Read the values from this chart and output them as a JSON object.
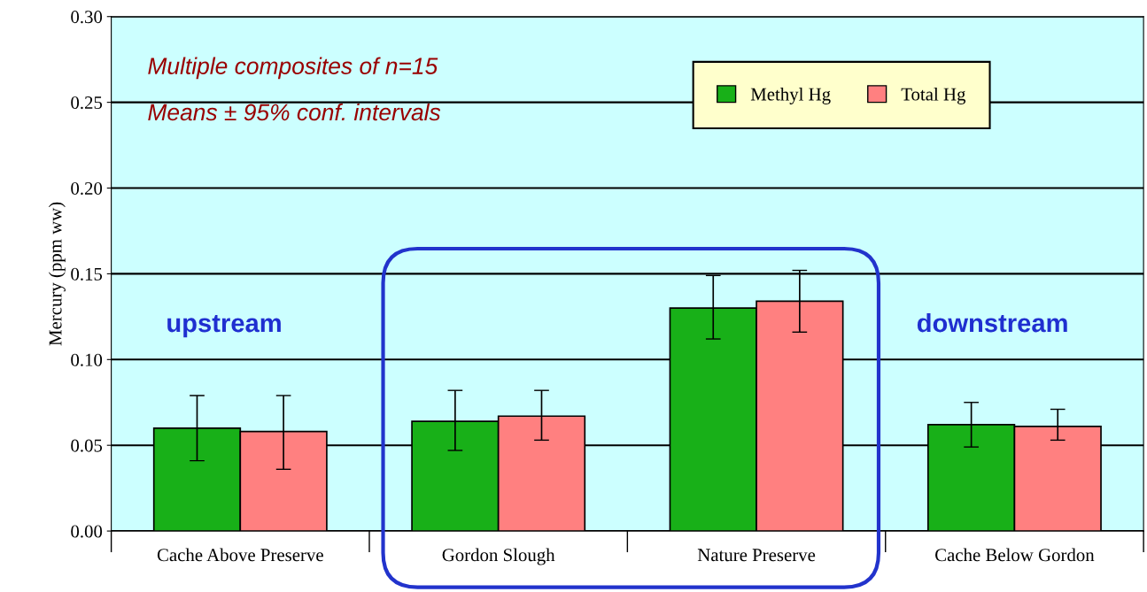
{
  "chart_data": {
    "type": "bar",
    "ylabel": "Mercury (ppm ww)",
    "categories": [
      "Cache Above Preserve",
      "Gordon Slough",
      "Nature Preserve",
      "Cache Below Gordon"
    ],
    "series": [
      {
        "name": "Methyl Hg",
        "color": "#18b018",
        "values": [
          0.06,
          0.064,
          0.13,
          0.062
        ],
        "errors": [
          [
            0.041,
            0.079
          ],
          [
            0.047,
            0.082
          ],
          [
            0.112,
            0.149
          ],
          [
            0.049,
            0.075
          ]
        ]
      },
      {
        "name": "Total Hg",
        "color": "#ff8080",
        "values": [
          0.058,
          0.067,
          0.134,
          0.061
        ],
        "errors": [
          [
            0.036,
            0.079
          ],
          [
            0.053,
            0.082
          ],
          [
            0.116,
            0.152
          ],
          [
            0.053,
            0.071
          ]
        ]
      }
    ],
    "ylim": [
      0,
      0.3
    ],
    "yticks": [
      {
        "value": 0,
        "label": "0.00"
      },
      {
        "value": 0.05,
        "label": "0.05"
      },
      {
        "value": 0.1,
        "label": "0.10"
      },
      {
        "value": 0.15,
        "label": "0.15"
      },
      {
        "value": 0.2,
        "label": "0.20"
      },
      {
        "value": 0.25,
        "label": "0.25"
      },
      {
        "value": 0.3,
        "label": "0.30"
      }
    ],
    "grid": "y",
    "legend": "top right",
    "annotations": [
      "Multiple composites of n=15",
      "Means ± 95% conf. intervals",
      "upstream",
      "downstream"
    ]
  }
}
